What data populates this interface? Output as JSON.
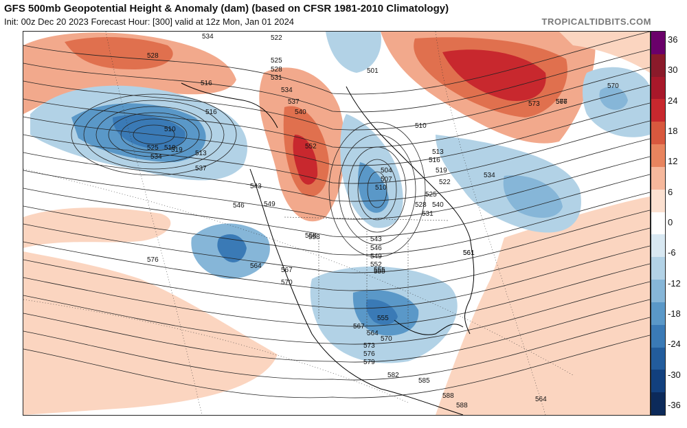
{
  "header": {
    "title": "GFS 500mb Geopotential Height & Anomaly (dam) (based on CFSR 1981-2010 Climatology)",
    "subtitle": "Init: 00z Dec 20 2023   Forecast Hour: [300]   valid at 12z Mon, Jan 01 2024",
    "brand": "TROPICALTIDBITS.COM"
  },
  "colorbar": {
    "labels": [
      "36",
      "30",
      "24",
      "18",
      "12",
      "6",
      "0",
      "-6",
      "-12",
      "-18",
      "-24",
      "-30",
      "-36"
    ],
    "colors": [
      "#6a006a",
      "#8a1a2a",
      "#a8182a",
      "#c8282e",
      "#d8583e",
      "#e8845e",
      "#f6b89c",
      "#fbe0d0",
      "#ffffff",
      "#d8e8f2",
      "#b2d2e6",
      "#86b6d8",
      "#5a98c8",
      "#3a7ab6",
      "#225c9c",
      "#12407e",
      "#0c2a5a"
    ]
  },
  "map": {
    "contour_labels": [
      "528",
      "534",
      "522",
      "516",
      "525",
      "528",
      "531",
      "501",
      "534",
      "537",
      "540",
      "510",
      "516",
      "510",
      "519",
      "525",
      "513",
      "519",
      "534",
      "537",
      "543",
      "546",
      "549",
      "552",
      "504",
      "507",
      "510",
      "513",
      "516",
      "519",
      "522",
      "525",
      "528",
      "531",
      "534",
      "540",
      "543",
      "546",
      "549",
      "552",
      "555",
      "558",
      "561",
      "558",
      "555",
      "564",
      "567",
      "570",
      "573",
      "576",
      "576",
      "570",
      "567",
      "555",
      "561",
      "564",
      "567",
      "570",
      "573",
      "576",
      "579",
      "582",
      "585",
      "588",
      "588",
      "564"
    ]
  }
}
